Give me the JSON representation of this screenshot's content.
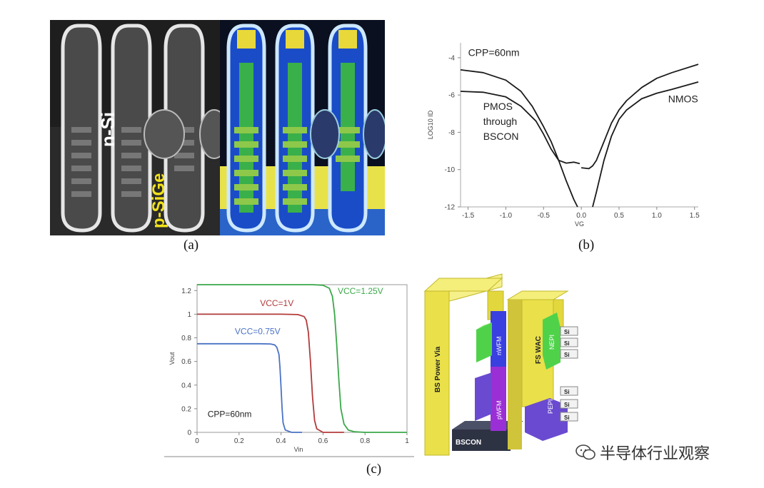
{
  "figure": {
    "captions": {
      "a": "(a)",
      "b": "(b)",
      "c": "(c)"
    },
    "watermark": "半导体行业观察"
  },
  "panel_a": {
    "labels": {
      "n_si": "n-Si",
      "p_sige": "p-SiGe"
    },
    "colors": {
      "n_si": "#ffffff",
      "p_sige": "#f2e21a"
    }
  },
  "panel_c_3d": {
    "labels": {
      "bs_power_via": "BS Power Via",
      "fs_wac": "FS WAC",
      "nwfm": "nWFM",
      "pwfm": "pWFM",
      "nepi": "NEPI",
      "pepi": "PEPI",
      "bscon": "BSCON",
      "si": "Si"
    },
    "colors": {
      "via": "#e9e04a",
      "nwfm": "#3a3fe0",
      "pwfm": "#9b2fd6",
      "epi_n": "#4fd24a",
      "epi_p": "#6a4ad0",
      "bscon": "#2e3344"
    }
  },
  "chart_data": [
    {
      "type": "line",
      "id": "b",
      "xlabel": "VG",
      "ylabel": "LOG10 ID",
      "xlim": [
        -1.6,
        1.55
      ],
      "ylim": [
        -12,
        -3.2
      ],
      "xticks": [
        -1.5,
        -1.0,
        -0.5,
        0.0,
        0.5,
        1.0,
        1.5
      ],
      "xtick_labels": [
        "-1.5",
        "-1.0",
        "-0.5",
        "0.0",
        "0.5",
        "1.0",
        "1.5"
      ],
      "yticks": [
        -12,
        -10,
        -8,
        -6,
        -4
      ],
      "ytick_labels": [
        "-12",
        "-10",
        "-8",
        "-6",
        "-4"
      ],
      "grid": false,
      "annotations": [
        {
          "text": "CPP=60nm",
          "x": -1.5,
          "y": -3.9
        },
        {
          "text": "PMOS",
          "x": -1.3,
          "y": -6.8
        },
        {
          "text": "through",
          "x": -1.3,
          "y": -7.6
        },
        {
          "text": "BSCON",
          "x": -1.3,
          "y": -8.4
        },
        {
          "text": "NMOS",
          "x": 1.15,
          "y": -6.4
        }
      ],
      "series": [
        {
          "name": "PMOS",
          "color": "#1a1a1a",
          "x": [
            -1.6,
            -1.3,
            -1.0,
            -0.8,
            -0.65,
            -0.5,
            -0.4,
            -0.3,
            -0.2,
            -0.1,
            -0.05
          ],
          "y": [
            -4.65,
            -4.8,
            -5.2,
            -5.8,
            -6.6,
            -7.7,
            -8.5,
            -9.5,
            -10.6,
            -11.6,
            -12.0
          ]
        },
        {
          "name": "PMOS",
          "color": "#1a1a1a",
          "x": [
            -1.6,
            -1.3,
            -1.0,
            -0.8,
            -0.6,
            -0.5,
            -0.4,
            -0.3,
            -0.2,
            -0.1,
            -0.02
          ],
          "y": [
            -5.8,
            -5.85,
            -6.1,
            -6.6,
            -7.4,
            -8.1,
            -8.9,
            -9.5,
            -9.65,
            -9.6,
            -9.68
          ]
        },
        {
          "name": "NMOS",
          "color": "#1a1a1a",
          "x": [
            0.0,
            0.1,
            0.15,
            0.2,
            0.3,
            0.4,
            0.5,
            0.6,
            0.8,
            1.0,
            1.2,
            1.55
          ],
          "y": [
            -9.9,
            -9.95,
            -9.8,
            -9.5,
            -8.5,
            -7.5,
            -6.8,
            -6.3,
            -5.6,
            -5.1,
            -4.8,
            -4.35
          ]
        },
        {
          "name": "NMOS",
          "color": "#1a1a1a",
          "x": [
            0.15,
            0.2,
            0.3,
            0.4,
            0.5,
            0.6,
            0.8,
            1.0,
            1.2,
            1.55
          ],
          "y": [
            -12.0,
            -11.2,
            -9.5,
            -8.2,
            -7.3,
            -6.8,
            -6.2,
            -5.9,
            -5.7,
            -5.3
          ]
        }
      ]
    },
    {
      "type": "line",
      "id": "c",
      "xlabel": "Vin",
      "ylabel": "Vout",
      "xlim": [
        0,
        1
      ],
      "ylim": [
        0,
        1.25
      ],
      "xticks": [
        0,
        0.2,
        0.4,
        0.6,
        0.8,
        1
      ],
      "xtick_labels": [
        "0",
        "0.2",
        "0.4",
        "0.6",
        "0.8",
        "1"
      ],
      "yticks": [
        0,
        0.2,
        0.4,
        0.6,
        0.8,
        1,
        1.2
      ],
      "ytick_labels": [
        "0",
        "0.2",
        "0.4",
        "0.6",
        "0.8",
        "1",
        "1.2"
      ],
      "grid": false,
      "annotations": [
        {
          "text": "CPP=60nm",
          "x": 0.05,
          "y": 0.13
        }
      ],
      "series": [
        {
          "name": "VCC=0.75V",
          "color": "#4a72c4",
          "x": [
            0,
            0.1,
            0.2,
            0.3,
            0.35,
            0.37,
            0.38,
            0.39,
            0.395,
            0.4,
            0.405,
            0.41,
            0.42,
            0.45,
            0.5
          ],
          "y": [
            0.75,
            0.75,
            0.75,
            0.75,
            0.748,
            0.74,
            0.72,
            0.66,
            0.55,
            0.38,
            0.2,
            0.08,
            0.02,
            0.0,
            0.0
          ],
          "label_xy": [
            0.18,
            0.83
          ]
        },
        {
          "name": "VCC=1V",
          "color": "#b33a3a",
          "x": [
            0,
            0.1,
            0.2,
            0.3,
            0.4,
            0.48,
            0.51,
            0.52,
            0.53,
            0.54,
            0.55,
            0.56,
            0.57,
            0.6,
            0.7
          ],
          "y": [
            1,
            1,
            1,
            1,
            1,
            0.997,
            0.98,
            0.95,
            0.85,
            0.6,
            0.3,
            0.1,
            0.03,
            0.0,
            0.0
          ],
          "label_xy": [
            0.3,
            1.07
          ]
        },
        {
          "name": "VCC=1.25V",
          "color": "#3aa84a",
          "x": [
            0,
            0.2,
            0.4,
            0.55,
            0.6,
            0.63,
            0.645,
            0.655,
            0.665,
            0.675,
            0.685,
            0.7,
            0.72,
            0.75,
            0.8,
            1.0
          ],
          "y": [
            1.25,
            1.25,
            1.25,
            1.25,
            1.245,
            1.22,
            1.15,
            1.0,
            0.75,
            0.45,
            0.2,
            0.07,
            0.02,
            0.005,
            0.0,
            0.0
          ],
          "label_xy": [
            0.67,
            1.17
          ]
        }
      ]
    }
  ]
}
